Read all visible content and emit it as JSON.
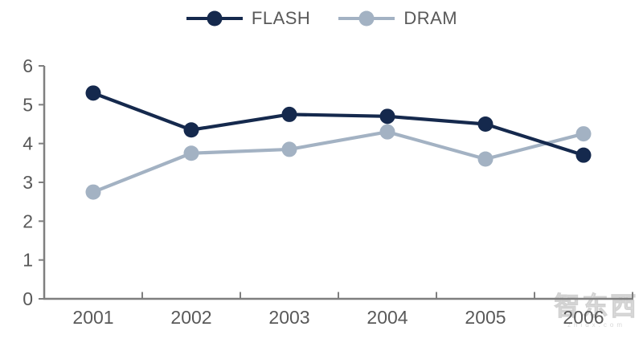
{
  "chart_data": {
    "type": "line",
    "title": "",
    "xlabel": "",
    "ylabel": "",
    "categories": [
      "2001",
      "2002",
      "2003",
      "2004",
      "2005",
      "2006"
    ],
    "series": [
      {
        "name": "FLASH",
        "color": "#15294d",
        "values": [
          5.3,
          4.35,
          4.75,
          4.7,
          4.5,
          3.7
        ]
      },
      {
        "name": "DRAM",
        "color": "#a3b2c3",
        "values": [
          2.75,
          3.75,
          3.85,
          4.3,
          3.6,
          4.25
        ]
      }
    ],
    "ylim": [
      0,
      6
    ],
    "yticks": [
      0,
      1,
      2,
      3,
      4,
      5,
      6
    ],
    "grid": false,
    "legend_position": "top-center",
    "axis_color": "#7f7f7f",
    "tick_label_color": "#595959",
    "marker": "circle"
  },
  "watermark": {
    "text": "智东西",
    "subtext": "zhidx.com"
  }
}
